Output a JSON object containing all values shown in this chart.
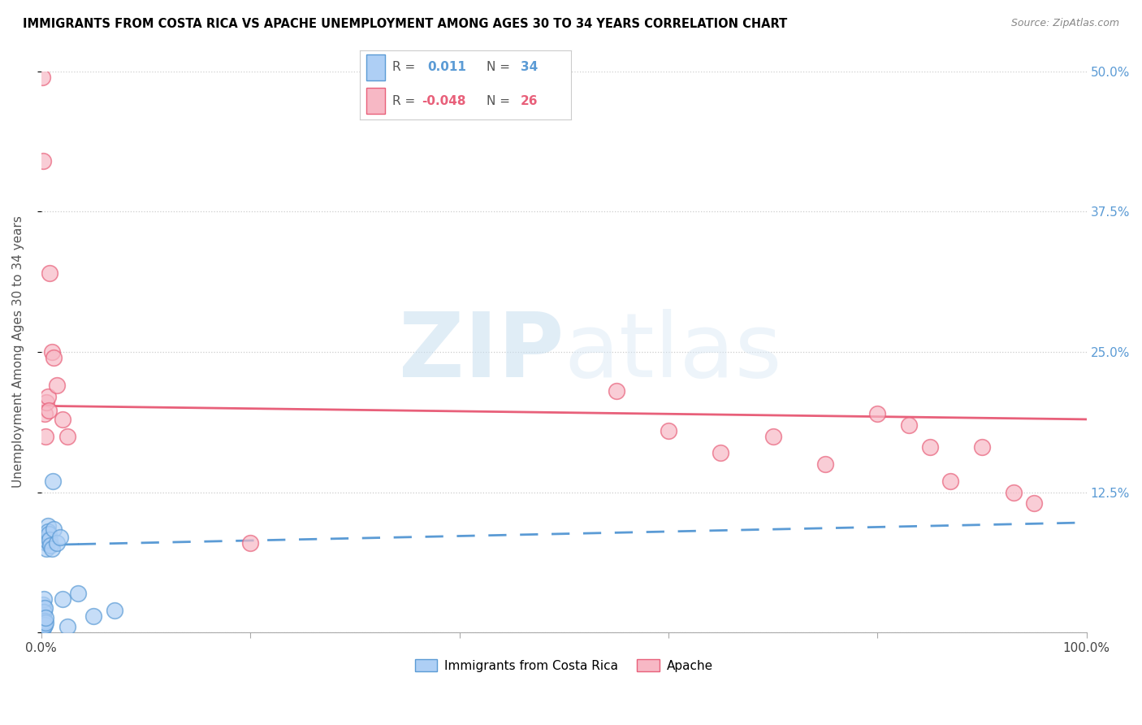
{
  "title": "IMMIGRANTS FROM COSTA RICA VS APACHE UNEMPLOYMENT AMONG AGES 30 TO 34 YEARS CORRELATION CHART",
  "source": "Source: ZipAtlas.com",
  "ylabel": "Unemployment Among Ages 30 to 34 years",
  "xlim": [
    0,
    100
  ],
  "ylim": [
    0,
    50
  ],
  "yticks": [
    0,
    12.5,
    25.0,
    37.5,
    50.0
  ],
  "xticks": [
    0,
    20,
    40,
    60,
    80,
    100
  ],
  "blue_R": "0.011",
  "blue_N": "34",
  "pink_R": "-0.048",
  "pink_N": "26",
  "blue_fill": "#AECFF5",
  "blue_edge": "#5B9BD5",
  "pink_fill": "#F7B8C5",
  "pink_edge": "#E8607A",
  "pink_line": "#E8607A",
  "blue_line": "#5B9BD5",
  "watermark_zip": "ZIP",
  "watermark_atlas": "atlas",
  "blue_trend_x0": 0,
  "blue_trend_x1": 100,
  "blue_trend_y0": 7.8,
  "blue_trend_y1": 9.8,
  "pink_trend_x0": 0,
  "pink_trend_x1": 100,
  "pink_trend_y0": 20.2,
  "pink_trend_y1": 19.0,
  "blue_solid_end": 3.5,
  "blue_x": [
    0.05,
    0.08,
    0.1,
    0.12,
    0.15,
    0.18,
    0.2,
    0.22,
    0.25,
    0.28,
    0.3,
    0.32,
    0.35,
    0.38,
    0.4,
    0.42,
    0.45,
    0.5,
    0.55,
    0.6,
    0.65,
    0.7,
    0.8,
    0.9,
    1.0,
    1.1,
    1.2,
    1.5,
    1.8,
    2.0,
    2.5,
    3.5,
    5.0,
    7.0
  ],
  "blue_y": [
    0.3,
    0.5,
    1.2,
    0.8,
    1.5,
    2.5,
    0.4,
    3.0,
    0.6,
    1.8,
    2.2,
    1.0,
    0.7,
    0.9,
    1.3,
    8.5,
    8.0,
    7.5,
    8.2,
    9.5,
    9.0,
    8.8,
    8.3,
    7.8,
    7.5,
    13.5,
    9.2,
    8.0,
    8.5,
    3.0,
    0.5,
    3.5,
    1.5,
    2.0
  ],
  "pink_x": [
    0.1,
    0.2,
    0.3,
    0.4,
    0.5,
    0.6,
    0.7,
    0.8,
    1.0,
    1.2,
    1.5,
    2.0,
    2.5,
    20.0,
    55.0,
    60.0,
    65.0,
    70.0,
    75.0,
    80.0,
    83.0,
    85.0,
    87.0,
    90.0,
    93.0,
    95.0
  ],
  "pink_y": [
    49.5,
    42.0,
    19.5,
    17.5,
    20.5,
    21.0,
    19.8,
    32.0,
    25.0,
    24.5,
    22.0,
    19.0,
    17.5,
    8.0,
    21.5,
    18.0,
    16.0,
    17.5,
    15.0,
    19.5,
    18.5,
    16.5,
    13.5,
    16.5,
    12.5,
    11.5
  ]
}
